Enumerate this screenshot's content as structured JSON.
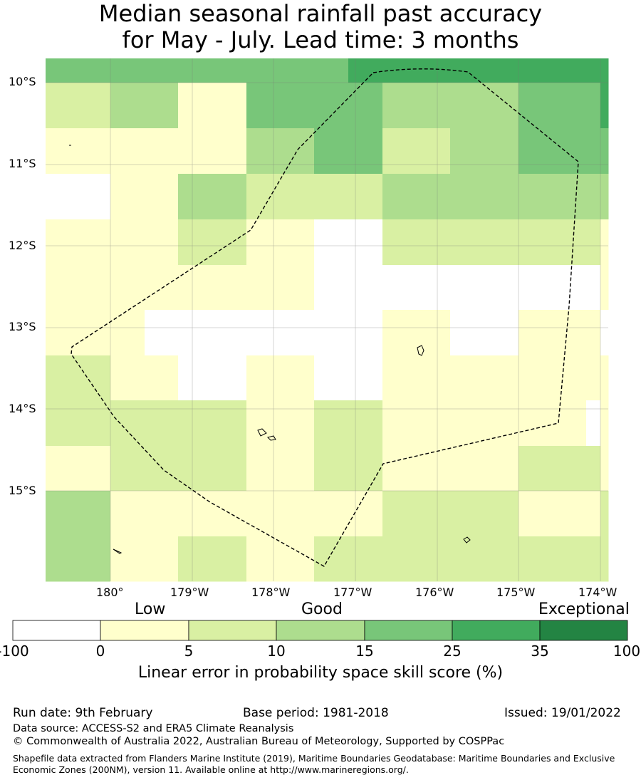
{
  "title": {
    "line1": "Median seasonal rainfall past accuracy",
    "line2": "for May - July. Lead time: 3 months"
  },
  "map": {
    "lat_labels": [
      "10°S",
      "11°S",
      "12°S",
      "13°S",
      "14°S",
      "15°S"
    ],
    "lon_labels": [
      "180°",
      "179°W",
      "178°W",
      "177°W",
      "176°W",
      "175°W",
      "174°W"
    ],
    "category_colors": [
      "#ffffff",
      "#ffffcc",
      "#d9f0a3",
      "#addd8e",
      "#78c679",
      "#41ab5d",
      "#238443"
    ],
    "grid_lon_start": "180.8°W",
    "grid_lat_start": "9.7°S",
    "cell_lon_deg": 0.83,
    "cell_lat_deg": 0.555,
    "skill_categories": [
      [
        4,
        4,
        4,
        4,
        4,
        4,
        4,
        4,
        4,
        5,
        5,
        5,
        5,
        5,
        5,
        5,
        5,
        5
      ],
      [
        2,
        2,
        3,
        3,
        1,
        1,
        4,
        4,
        4,
        4,
        3,
        3,
        3,
        3,
        4,
        4,
        4,
        5
      ],
      [
        1,
        1,
        1,
        1,
        1,
        1,
        3,
        3,
        4,
        4,
        2,
        2,
        3,
        3,
        4,
        4,
        4,
        4
      ],
      [
        0,
        0,
        1,
        1,
        3,
        3,
        2,
        2,
        2,
        2,
        3,
        3,
        3,
        3,
        3,
        3,
        3,
        3
      ],
      [
        1,
        1,
        1,
        1,
        2,
        2,
        1,
        1,
        0,
        0,
        2,
        2,
        2,
        2,
        2,
        2,
        2,
        1
      ],
      [
        1,
        1,
        1,
        1,
        1,
        1,
        1,
        1,
        0,
        0,
        0,
        0,
        0,
        0,
        0,
        0,
        0,
        1
      ],
      [
        1,
        1,
        1,
        0,
        0,
        0,
        0,
        0,
        0,
        0,
        1,
        1,
        0,
        0,
        1,
        1,
        1,
        0
      ],
      [
        2,
        2,
        1,
        1,
        0,
        0,
        1,
        1,
        0,
        0,
        1,
        1,
        1,
        1,
        1,
        1,
        1,
        1
      ],
      [
        2,
        2,
        2,
        2,
        2,
        2,
        1,
        1,
        2,
        2,
        1,
        1,
        1,
        1,
        1,
        1,
        0,
        1
      ],
      [
        1,
        1,
        2,
        2,
        2,
        2,
        1,
        1,
        2,
        2,
        1,
        1,
        1,
        1,
        2,
        2,
        2,
        1
      ],
      [
        3,
        3,
        1,
        1,
        1,
        1,
        1,
        1,
        1,
        1,
        2,
        2,
        2,
        2,
        1,
        1,
        1,
        2
      ],
      [
        3,
        3,
        1,
        1,
        2,
        2,
        1,
        1,
        2,
        2,
        2,
        2,
        2,
        2,
        2,
        2,
        2,
        2
      ]
    ]
  },
  "colorbar": {
    "headings": {
      "low": "Low",
      "good": "Good",
      "exceptional": "Exceptional"
    },
    "ticks": [
      "-100",
      "0",
      "5",
      "10",
      "15",
      "25",
      "35",
      "100"
    ],
    "label": "Linear error in probability space skill score (%)"
  },
  "info": {
    "run_date": "Run date: 9th February",
    "base_period": "Base period: 1981-2018",
    "issued": "Issued: 19/01/2022",
    "data_source": "Data source: ACCESS-S2 and ERA5 Climate Reanalysis",
    "copyright": "© Commonwealth of Australia 2022, Australian Bureau of Meteorology, Supported by COSPPac",
    "shapefile": "Shapefile data extracted from Flanders Marine Institute (2019), Maritime Boundaries Geodatabase: Maritime Boundaries and Exclusive Economic Zones (200NM), version 11. Available online at http://www.marineregions.org/."
  }
}
